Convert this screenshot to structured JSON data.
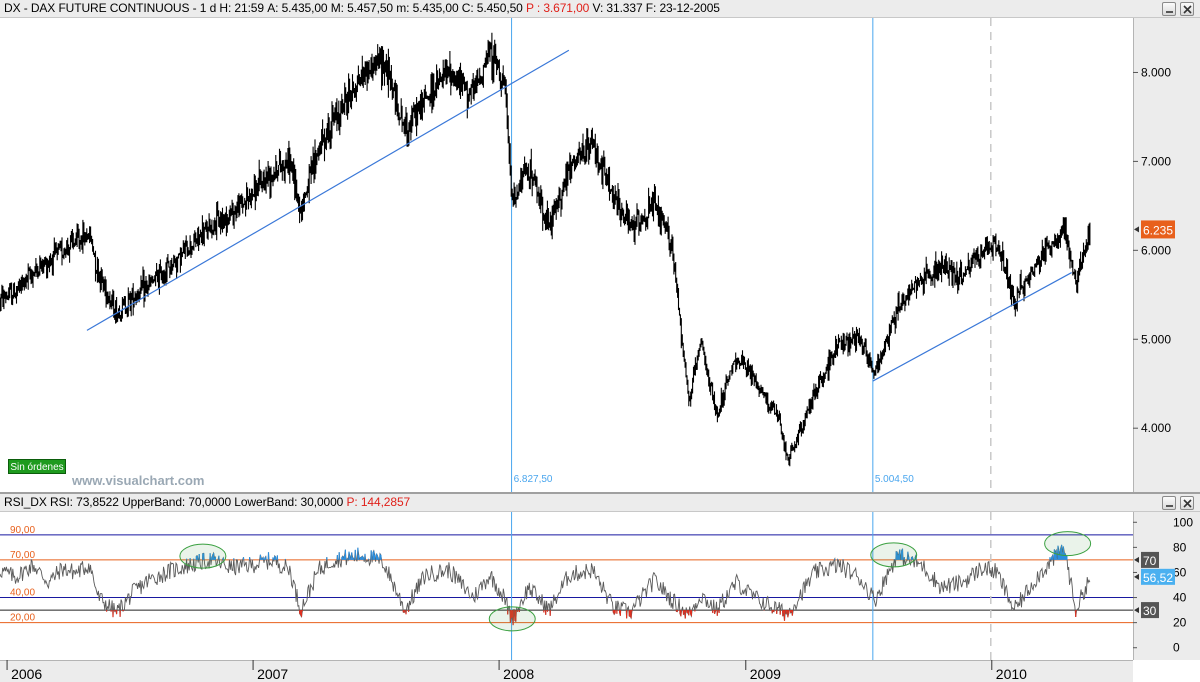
{
  "main_header": {
    "prefix": "DX - DAX FUTURE CONTINUOUS - 1 d",
    "time": "H: 21:59",
    "open": "A: 5.435,00",
    "high": "M: 5.457,50",
    "low": "m: 5.435,00",
    "close": "C: 5.450,50",
    "pl": "P : 3.671,00",
    "volume": "V: 31.337",
    "date": "F: 23-12-2005"
  },
  "rsi_header": {
    "name": "RSI_DX RSI: 73,8522",
    "upper": "UpperBand: 70,0000",
    "lower": "LowerBand: 30,0000",
    "pl": "P: 144,2857"
  },
  "watermark": "www.visualchart.com",
  "orders_button": "Sin órdenes",
  "colors": {
    "price": "#000000",
    "trendline": "#3a78d8",
    "vline": "#4aa6ee",
    "last_price_bg": "#e8601c",
    "rsi_line": "#5a5a5a",
    "rsi_over": "#2a8fe0",
    "rsi_under": "#e03020",
    "band_orange": "#e8601c",
    "band_blue": "#1818a0",
    "circle": "#3aa040"
  },
  "chart_data": [
    {
      "type": "line",
      "series_type": "ohlc-daily",
      "y_ticks": [
        4000,
        5000,
        6000,
        7000,
        8000
      ],
      "y_tick_labels": [
        "4.000",
        "5.000",
        "6.000",
        "7.000",
        "8.000"
      ],
      "ylim": [
        3350,
        8500
      ],
      "x_labels": [
        "2006",
        "2007",
        "2008",
        "2009",
        "2010"
      ],
      "x_positions": [
        "2006",
        "2007",
        "2008",
        "2009",
        "2010"
      ],
      "xlim": [
        "2005-12-23",
        "2010-07-31"
      ],
      "last_price_label": "6.235",
      "last_price": 6235,
      "close_series": [
        [
          "2005-12-23",
          5450
        ],
        [
          "2006-01-15",
          5530
        ],
        [
          "2006-02-10",
          5750
        ],
        [
          "2006-03-05",
          5880
        ],
        [
          "2006-03-25",
          6000
        ],
        [
          "2006-04-15",
          6100
        ],
        [
          "2006-05-05",
          6180
        ],
        [
          "2006-05-18",
          5750
        ],
        [
          "2006-06-14",
          5290
        ],
        [
          "2006-07-10",
          5500
        ],
        [
          "2006-08-01",
          5600
        ],
        [
          "2006-09-01",
          5820
        ],
        [
          "2006-10-01",
          6050
        ],
        [
          "2006-11-01",
          6260
        ],
        [
          "2006-12-01",
          6420
        ],
        [
          "2006-12-31",
          6620
        ],
        [
          "2007-02-01",
          6900
        ],
        [
          "2007-02-26",
          7000
        ],
        [
          "2007-03-14",
          6450
        ],
        [
          "2007-04-10",
          7150
        ],
        [
          "2007-05-01",
          7450
        ],
        [
          "2007-06-15",
          8000
        ],
        [
          "2007-07-15",
          8150
        ],
        [
          "2007-08-16",
          7350
        ],
        [
          "2007-09-15",
          7700
        ],
        [
          "2007-10-20",
          8000
        ],
        [
          "2007-11-25",
          7750
        ],
        [
          "2007-12-20",
          8250
        ],
        [
          "2008-01-10",
          7900
        ],
        [
          "2008-01-22",
          6520
        ],
        [
          "2008-02-15",
          6950
        ],
        [
          "2008-03-17",
          6250
        ],
        [
          "2008-04-15",
          6900
        ],
        [
          "2008-05-20",
          7200
        ],
        [
          "2008-06-20",
          6600
        ],
        [
          "2008-07-15",
          6250
        ],
        [
          "2008-08-20",
          6500
        ],
        [
          "2008-09-15",
          6050
        ],
        [
          "2008-10-10",
          4300
        ],
        [
          "2008-10-28",
          4950
        ],
        [
          "2008-11-20",
          4150
        ],
        [
          "2008-12-20",
          4800
        ],
        [
          "2009-01-15",
          4550
        ],
        [
          "2009-02-20",
          4100
        ],
        [
          "2009-03-06",
          3620
        ],
        [
          "2009-04-15",
          4400
        ],
        [
          "2009-05-20",
          4950
        ],
        [
          "2009-06-20",
          5050
        ],
        [
          "2009-07-13",
          4600
        ],
        [
          "2009-08-15",
          5350
        ],
        [
          "2009-09-20",
          5700
        ],
        [
          "2009-10-20",
          5800
        ],
        [
          "2009-11-20",
          5700
        ],
        [
          "2009-12-20",
          6000
        ],
        [
          "2010-01-10",
          6050
        ],
        [
          "2010-02-05",
          5450
        ],
        [
          "2010-03-10",
          5850
        ],
        [
          "2010-04-20",
          6250
        ],
        [
          "2010-05-07",
          5600
        ],
        [
          "2010-05-20",
          6000
        ],
        [
          "2010-05-28",
          6235
        ]
      ],
      "trendlines": [
        [
          [
            "2006-05-01",
            5100
          ],
          [
            "2008-04-15",
            8250
          ]
        ],
        [
          [
            "2009-07-10",
            4530
          ],
          [
            "2010-05-01",
            5750
          ]
        ]
      ],
      "vlines": [
        {
          "date": "2008-01-21",
          "label": "6.827,50"
        },
        {
          "date": "2009-07-10",
          "label": "5.004,50"
        }
      ],
      "dashed_vline": "2010-01-01"
    },
    {
      "type": "line",
      "title": "RSI_DX RSI",
      "y_ticks": [
        0,
        20,
        40,
        60,
        80,
        100
      ],
      "ylim": [
        -5,
        105
      ],
      "bands": [
        {
          "value": 90,
          "label": "90,00",
          "color": "blue"
        },
        {
          "value": 70,
          "label": "70,00",
          "color": "orange"
        },
        {
          "value": 40,
          "label": "40,00",
          "color": "blue"
        },
        {
          "value": 30,
          "label": "",
          "color": "black"
        },
        {
          "value": 20,
          "label": "20,00",
          "color": "orange"
        }
      ],
      "axis_markers": [
        {
          "value": 70,
          "label": "70"
        },
        {
          "value": 56.52,
          "label": "56,52"
        },
        {
          "value": 30,
          "label": "30"
        }
      ],
      "rsi_series": [
        [
          "2005-12-23",
          62
        ],
        [
          "2006-01-15",
          56
        ],
        [
          "2006-02-10",
          66
        ],
        [
          "2006-03-05",
          52
        ],
        [
          "2006-03-25",
          63
        ],
        [
          "2006-04-15",
          60
        ],
        [
          "2006-05-05",
          66
        ],
        [
          "2006-05-18",
          40
        ],
        [
          "2006-06-14",
          28
        ],
        [
          "2006-07-10",
          45
        ],
        [
          "2006-08-01",
          54
        ],
        [
          "2006-09-01",
          61
        ],
        [
          "2006-10-01",
          66
        ],
        [
          "2006-11-01",
          70
        ],
        [
          "2006-12-01",
          64
        ],
        [
          "2006-12-31",
          66
        ],
        [
          "2007-02-01",
          70
        ],
        [
          "2007-02-26",
          62
        ],
        [
          "2007-03-14",
          30
        ],
        [
          "2007-04-10",
          62
        ],
        [
          "2007-05-01",
          70
        ],
        [
          "2007-06-15",
          74
        ],
        [
          "2007-07-15",
          68
        ],
        [
          "2007-08-16",
          30
        ],
        [
          "2007-09-15",
          58
        ],
        [
          "2007-10-20",
          62
        ],
        [
          "2007-11-25",
          40
        ],
        [
          "2007-12-20",
          58
        ],
        [
          "2008-01-10",
          40
        ],
        [
          "2008-01-22",
          22
        ],
        [
          "2008-02-15",
          48
        ],
        [
          "2008-03-17",
          30
        ],
        [
          "2008-04-15",
          58
        ],
        [
          "2008-05-20",
          62
        ],
        [
          "2008-06-20",
          32
        ],
        [
          "2008-07-15",
          28
        ],
        [
          "2008-08-20",
          54
        ],
        [
          "2008-09-15",
          38
        ],
        [
          "2008-10-10",
          26
        ],
        [
          "2008-10-28",
          42
        ],
        [
          "2008-11-20",
          30
        ],
        [
          "2008-12-20",
          52
        ],
        [
          "2009-01-15",
          40
        ],
        [
          "2009-02-20",
          30
        ],
        [
          "2009-03-06",
          27
        ],
        [
          "2009-04-15",
          60
        ],
        [
          "2009-05-20",
          66
        ],
        [
          "2009-06-20",
          56
        ],
        [
          "2009-07-13",
          38
        ],
        [
          "2009-08-15",
          74
        ],
        [
          "2009-09-20",
          66
        ],
        [
          "2009-10-20",
          48
        ],
        [
          "2009-11-20",
          52
        ],
        [
          "2009-12-20",
          64
        ],
        [
          "2010-01-10",
          60
        ],
        [
          "2010-02-05",
          30
        ],
        [
          "2010-03-10",
          56
        ],
        [
          "2010-04-20",
          80
        ],
        [
          "2010-05-07",
          30
        ],
        [
          "2010-05-20",
          46
        ],
        [
          "2010-05-28",
          56.52
        ]
      ],
      "circles": [
        {
          "date": "2006-10-20",
          "value": 73
        },
        {
          "date": "2008-01-22",
          "value": 23
        },
        {
          "date": "2009-08-10",
          "value": 74
        },
        {
          "date": "2010-04-25",
          "value": 83
        }
      ]
    }
  ]
}
